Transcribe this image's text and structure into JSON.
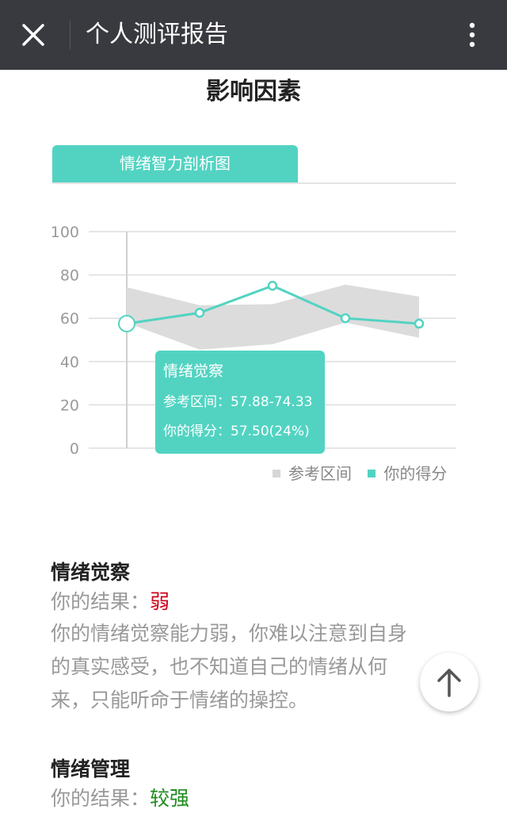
{
  "header": {
    "title": "个人测评报告"
  },
  "section": {
    "heading": "影响因素"
  },
  "chart": {
    "tab_label": "情绪智力剖析图",
    "tooltip": {
      "title": "情绪觉察",
      "range_label": "参考区间：",
      "range_value": "57.88-74.33",
      "score_label": "你的得分：",
      "score_value": "57.50(24%)"
    },
    "legend": {
      "range": "参考区间",
      "score": "你的得分"
    }
  },
  "chart_data": {
    "type": "line",
    "y_ticks": [
      "100",
      "80",
      "60",
      "40",
      "20",
      "0"
    ],
    "ylim": [
      0,
      100
    ],
    "grid": true,
    "legend_position": "bottom-right",
    "series": [
      {
        "name": "你的得分",
        "values": [
          57.5,
          62.5,
          75,
          60,
          57.5
        ]
      },
      {
        "name": "参考区间",
        "type": "area-range",
        "lower": [
          57.88,
          45.5,
          48,
          58,
          51
        ],
        "upper": [
          74.33,
          66,
          66.5,
          75.5,
          70
        ]
      }
    ],
    "colors": {
      "score": "#52d3c2",
      "range": "#dcdcdc"
    }
  },
  "items": [
    {
      "title": "情绪觉察",
      "result_label": "你的结果：",
      "result_value": "弱",
      "lines": [
        "你的情绪觉察能力弱，你难以注意到自身",
        "的真实感受，也不知道自己的情绪从何",
        "来，只能听命于情绪的操控。"
      ]
    },
    {
      "title": "情绪管理",
      "result_label": "你的结果：",
      "result_value": "较强"
    }
  ]
}
